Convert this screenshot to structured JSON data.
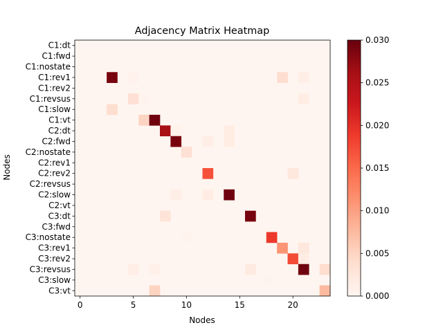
{
  "chart_data": {
    "type": "heatmap",
    "title": "Adjacency Matrix Heatmap",
    "xlabel": "Nodes",
    "ylabel": "Nodes",
    "row_labels": [
      "C1:dt",
      "C1:fwd",
      "C1:nostate",
      "C1:rev1",
      "C1:rev2",
      "C1:revsus",
      "C1:slow",
      "C1:vt",
      "C2:dt",
      "C2:fwd",
      "C2:nostate",
      "C2:rev1",
      "C2:rev2",
      "C2:revsus",
      "C2:slow",
      "C2:vt",
      "C3:dt",
      "C3:fwd",
      "C3:nostate",
      "C3:rev1",
      "C3:rev2",
      "C3:revsus",
      "C3:slow",
      "C3:vt"
    ],
    "x_ticks": [
      "0",
      "5",
      "10",
      "15",
      "20"
    ],
    "x_tick_values": [
      0,
      5,
      10,
      15,
      20
    ],
    "xlim": [
      -0.5,
      23.5
    ],
    "colorbar": {
      "min": 0.0,
      "max": 0.03,
      "ticks": [
        "0.000",
        "0.005",
        "0.010",
        "0.015",
        "0.020",
        "0.025",
        "0.030"
      ],
      "tick_values": [
        0,
        0.005,
        0.01,
        0.015,
        0.02,
        0.025,
        0.03
      ],
      "colormap": "Reds",
      "colors": [
        "#fff5f0",
        "#fee0d2",
        "#fcbba1",
        "#fc9272",
        "#fb6a4a",
        "#ef3b2c",
        "#cb181d",
        "#a50f15",
        "#67000d"
      ]
    },
    "cells": [
      {
        "row": 3,
        "col": 3,
        "value": 0.029
      },
      {
        "row": 3,
        "col": 5,
        "value": 0.0005
      },
      {
        "row": 3,
        "col": 19,
        "value": 0.004
      },
      {
        "row": 3,
        "col": 21,
        "value": 0.0012
      },
      {
        "row": 5,
        "col": 5,
        "value": 0.0035
      },
      {
        "row": 5,
        "col": 6,
        "value": 0.0004
      },
      {
        "row": 5,
        "col": 21,
        "value": 0.0015
      },
      {
        "row": 6,
        "col": 3,
        "value": 0.004
      },
      {
        "row": 7,
        "col": 6,
        "value": 0.005
      },
      {
        "row": 7,
        "col": 7,
        "value": 0.0295
      },
      {
        "row": 8,
        "col": 8,
        "value": 0.026
      },
      {
        "row": 8,
        "col": 9,
        "value": 0.0006
      },
      {
        "row": 8,
        "col": 14,
        "value": 0.0015
      },
      {
        "row": 9,
        "col": 9,
        "value": 0.029
      },
      {
        "row": 9,
        "col": 12,
        "value": 0.0012
      },
      {
        "row": 9,
        "col": 14,
        "value": 0.0015
      },
      {
        "row": 10,
        "col": 10,
        "value": 0.0035
      },
      {
        "row": 12,
        "col": 12,
        "value": 0.017
      },
      {
        "row": 12,
        "col": 20,
        "value": 0.0025
      },
      {
        "row": 14,
        "col": 9,
        "value": 0.0012
      },
      {
        "row": 14,
        "col": 12,
        "value": 0.0015
      },
      {
        "row": 14,
        "col": 14,
        "value": 0.0295
      },
      {
        "row": 16,
        "col": 8,
        "value": 0.003
      },
      {
        "row": 16,
        "col": 16,
        "value": 0.029
      },
      {
        "row": 18,
        "col": 10,
        "value": 0.0003
      },
      {
        "row": 18,
        "col": 18,
        "value": 0.019
      },
      {
        "row": 19,
        "col": 19,
        "value": 0.011
      },
      {
        "row": 19,
        "col": 21,
        "value": 0.0025
      },
      {
        "row": 20,
        "col": 20,
        "value": 0.0175
      },
      {
        "row": 20,
        "col": 21,
        "value": 0.0015
      },
      {
        "row": 21,
        "col": 5,
        "value": 0.0012
      },
      {
        "row": 21,
        "col": 7,
        "value": 0.0008
      },
      {
        "row": 21,
        "col": 16,
        "value": 0.002
      },
      {
        "row": 21,
        "col": 21,
        "value": 0.0295
      },
      {
        "row": 21,
        "col": 23,
        "value": 0.004
      },
      {
        "row": 22,
        "col": 18,
        "value": 0.0004
      },
      {
        "row": 23,
        "col": 7,
        "value": 0.005
      },
      {
        "row": 23,
        "col": 23,
        "value": 0.0075
      }
    ]
  }
}
